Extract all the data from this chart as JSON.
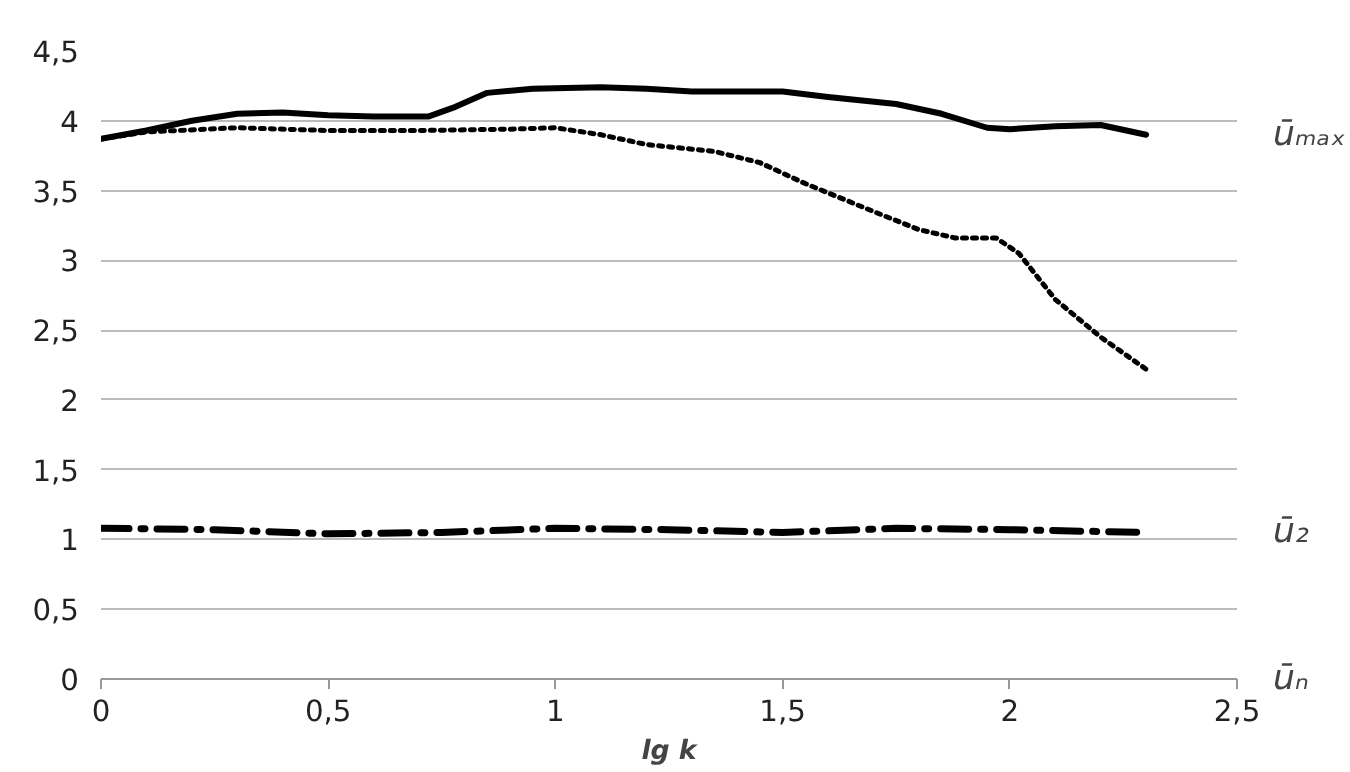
{
  "chart_data": {
    "type": "line",
    "xlabel": "lg k",
    "xlim": [
      0,
      2.5
    ],
    "ylim": [
      0,
      4.5
    ],
    "xticks": [
      {
        "value": 0,
        "label": "0"
      },
      {
        "value": 0.5,
        "label": "0,5"
      },
      {
        "value": 1,
        "label": "1"
      },
      {
        "value": 1.5,
        "label": "1,5"
      },
      {
        "value": 2,
        "label": "2"
      },
      {
        "value": 2.5,
        "label": "2,5"
      }
    ],
    "yticks": [
      {
        "value": 0,
        "label": "0"
      },
      {
        "value": 0.5,
        "label": "0,5"
      },
      {
        "value": 1,
        "label": "1"
      },
      {
        "value": 1.5,
        "label": "1,5"
      },
      {
        "value": 2,
        "label": "2"
      },
      {
        "value": 2.5,
        "label": "2,5"
      },
      {
        "value": 3,
        "label": "3"
      },
      {
        "value": 3.5,
        "label": "3,5"
      },
      {
        "value": 4,
        "label": "4"
      },
      {
        "value": 4.5,
        "label": "4,5"
      }
    ],
    "grid": "y",
    "series": [
      {
        "name": "ūₘₐₓ",
        "color": "#000000",
        "line_style": "solid",
        "x": [
          0,
          0.1,
          0.2,
          0.3,
          0.4,
          0.5,
          0.6,
          0.72,
          0.78,
          0.85,
          0.95,
          1.1,
          1.2,
          1.3,
          1.5,
          1.6,
          1.75,
          1.85,
          1.95,
          2.0,
          2.1,
          2.2,
          2.3
        ],
        "values": [
          3.87,
          3.93,
          4.0,
          4.05,
          4.06,
          4.04,
          4.03,
          4.03,
          4.1,
          4.2,
          4.23,
          4.24,
          4.23,
          4.21,
          4.21,
          4.17,
          4.12,
          4.05,
          3.95,
          3.94,
          3.96,
          3.97,
          3.9
        ]
      },
      {
        "color": "#000000",
        "line_style": "dotted",
        "x": [
          0,
          0.1,
          0.3,
          0.5,
          0.7,
          0.9,
          1.0,
          1.1,
          1.2,
          1.35,
          1.45,
          1.55,
          1.7,
          1.8,
          1.88,
          1.97,
          2.02,
          2.1,
          2.2,
          2.3
        ],
        "values": [
          3.87,
          3.92,
          3.95,
          3.93,
          3.93,
          3.94,
          3.95,
          3.9,
          3.83,
          3.78,
          3.7,
          3.55,
          3.35,
          3.22,
          3.16,
          3.16,
          3.05,
          2.72,
          2.45,
          2.22
        ]
      },
      {
        "name": "ū₂",
        "color": "#000000",
        "line_style": "dashdot",
        "x": [
          0,
          0.25,
          0.5,
          0.75,
          1.0,
          1.25,
          1.5,
          1.75,
          2.0,
          2.3
        ],
        "values": [
          1.08,
          1.07,
          1.04,
          1.05,
          1.08,
          1.07,
          1.05,
          1.08,
          1.07,
          1.05
        ]
      }
    ],
    "annotations": [
      "ūₙ"
    ]
  }
}
